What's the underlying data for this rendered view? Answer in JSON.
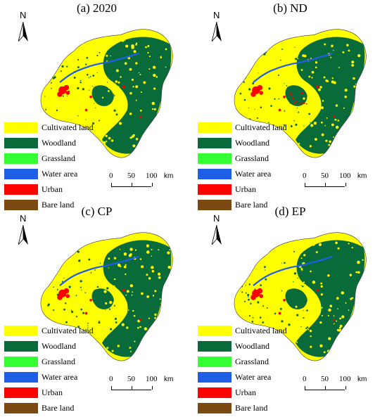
{
  "colors": {
    "cultivated": "#ffff00",
    "woodland": "#0a6b3a",
    "grassland": "#33ff33",
    "water": "#1f5fe8",
    "urban": "#ff0000",
    "bare": "#7a4a12"
  },
  "north_label": "N",
  "legend": [
    {
      "label": "Cultivated land",
      "color": "#ffff00"
    },
    {
      "label": "Woodland",
      "color": "#0a6b3a"
    },
    {
      "label": "Grassland",
      "color": "#33ff33"
    },
    {
      "label": "Water area",
      "color": "#1f5fe8"
    },
    {
      "label": "Urban",
      "color": "#ff0000"
    },
    {
      "label": "Bare land",
      "color": "#7a4a12"
    }
  ],
  "scale": {
    "ticks": [
      "0",
      "50",
      "100"
    ],
    "unit": "km"
  },
  "panels": [
    {
      "title": "(a) 2020"
    },
    {
      "title": "(b) ND"
    },
    {
      "title": "(c) CP"
    },
    {
      "title": "(d) EP"
    }
  ]
}
